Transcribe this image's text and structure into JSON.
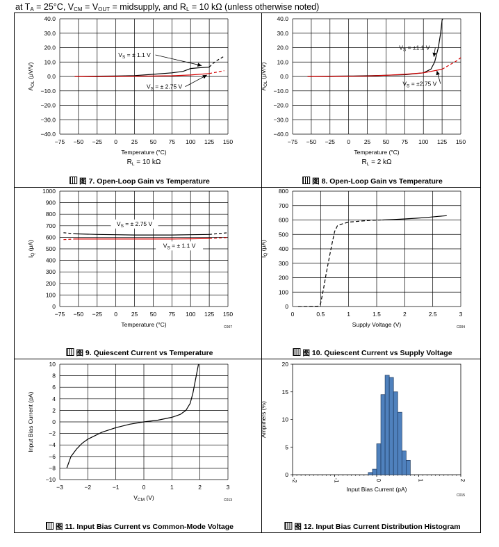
{
  "header": {
    "parts": [
      "at T",
      "A",
      " = 25°C, V",
      "CM",
      " = V",
      "OUT",
      " = midsupply, and R",
      "L",
      " = 10 kΩ (unless otherwise noted)"
    ]
  },
  "colors": {
    "black": "#000000",
    "red": "#d40000",
    "bar": "#4f81bd",
    "grid": "#000000"
  },
  "chart_data": [
    {
      "id": "fig7",
      "type": "line",
      "caption": "图 7. Open-Loop Gain vs Temperature",
      "xlabel": "Temperature (°C)",
      "xlabel_extra": "R_L = 10 kΩ",
      "ylabel": "A_OL (μV/V)",
      "xlim": [
        -75,
        150
      ],
      "ylim": [
        -40,
        40
      ],
      "xticks": [
        -75,
        -50,
        -25,
        0,
        25,
        50,
        75,
        100,
        125,
        150
      ],
      "yticks": [
        -40,
        -30,
        -20,
        -10,
        0,
        10,
        20,
        30,
        40
      ],
      "ytick_labels": [
        "−40.0",
        "−30.0",
        "−20.0",
        "−10.0",
        "0.0",
        "10.0",
        "20.0",
        "30.0",
        "40.0"
      ],
      "xtick_labels": [
        "−75",
        "−50",
        "−25",
        "0",
        "25",
        "50",
        "75",
        "100",
        "125",
        "150"
      ],
      "series": [
        {
          "name": "V_S = ± 1.1 V",
          "color": "#000000",
          "dash": "",
          "x": [
            -55,
            -25,
            0,
            25,
            50,
            75,
            90,
            100,
            110,
            125
          ],
          "y": [
            0,
            0.2,
            0.3,
            0.6,
            1.5,
            2.5,
            3.5,
            5.5,
            6,
            6.5
          ]
        },
        {
          "name": "V_S = ± 1.1 V ext",
          "color": "#000000",
          "dash": "4,3",
          "x": [
            125,
            130,
            135,
            140,
            145
          ],
          "y": [
            6.5,
            9,
            11,
            12.5,
            14
          ]
        },
        {
          "name": "V_S = ± 2.75 V",
          "color": "#d40000",
          "dash": "",
          "x": [
            -55,
            -25,
            0,
            25,
            50,
            75,
            100,
            125
          ],
          "y": [
            0,
            -0.1,
            0,
            0.2,
            0.3,
            0.5,
            1,
            2
          ]
        },
        {
          "name": "V_S = ± 2.75 V ext",
          "color": "#d40000",
          "dash": "4,3",
          "x": [
            125,
            135,
            145
          ],
          "y": [
            2,
            3,
            4
          ]
        }
      ],
      "annotations": [
        {
          "text": "V_S = ± 1.1 V",
          "tx": 25,
          "ty": 13.5,
          "ax": 115,
          "ay": 7.5
        },
        {
          "text": "V_S = ± 2.75 V",
          "tx": 65,
          "ty": -8.5,
          "ax": 122,
          "ay": 1
        }
      ]
    },
    {
      "id": "fig8",
      "type": "line",
      "caption": "图 8. Open-Loop Gain vs Temperature",
      "xlabel": "Temperature (°C)",
      "xlabel_extra": "R_L = 2 kΩ",
      "ylabel": "A_OL (μV/V)",
      "xlim": [
        -75,
        150
      ],
      "ylim": [
        -40,
        40
      ],
      "xticks": [
        -75,
        -50,
        -25,
        0,
        25,
        50,
        75,
        100,
        125,
        150
      ],
      "yticks": [
        -40,
        -30,
        -20,
        -10,
        0,
        10,
        20,
        30,
        40
      ],
      "ytick_labels": [
        "−40.0",
        "−30.0",
        "−20.0",
        "−10.0",
        "0.0",
        "10.0",
        "20.0",
        "30.0",
        "40.0"
      ],
      "xtick_labels": [
        "−75",
        "−50",
        "−25",
        "0",
        "25",
        "50",
        "75",
        "100",
        "125",
        "150"
      ],
      "series": [
        {
          "name": "V_S = ±1.1 V",
          "color": "#000000",
          "dash": "",
          "x": [
            -55,
            -25,
            0,
            25,
            50,
            75,
            100,
            110,
            115,
            120,
            123,
            125
          ],
          "y": [
            0,
            0.2,
            0.3,
            0.5,
            0.8,
            1.2,
            2.5,
            5,
            10,
            20,
            30,
            39
          ]
        },
        {
          "name": "V_S = ±1.1 V ext",
          "color": "#000000",
          "dash": "4,3",
          "x": [
            125,
            126
          ],
          "y": [
            39,
            40
          ]
        },
        {
          "name": "V_S = ±2.75 V",
          "color": "#d40000",
          "dash": "",
          "x": [
            -55,
            -25,
            0,
            25,
            50,
            75,
            100,
            125
          ],
          "y": [
            0,
            0,
            0.2,
            0.3,
            0.8,
            1.5,
            2.5,
            5
          ]
        },
        {
          "name": "V_S = ±2.75 V ext",
          "color": "#d40000",
          "dash": "4,3",
          "x": [
            125,
            135,
            145,
            150
          ],
          "y": [
            5,
            8,
            11,
            13
          ]
        }
      ],
      "annotations": [
        {
          "text": "V_S = ±1.1 V",
          "tx": 88,
          "ty": 18.5,
          "ax": 114,
          "ay": 13.5
        },
        {
          "text": "V_S = ±2.75 V",
          "tx": 95,
          "ty": -6.5,
          "ax": 118,
          "ay": 4
        }
      ]
    },
    {
      "id": "fig9",
      "type": "line",
      "caption": "图 9. Quiescent Current vs Temperature",
      "xlabel": "Temperature (°C)",
      "ylabel": "I_Q (μA)",
      "code": "C007",
      "xlim": [
        -75,
        150
      ],
      "ylim": [
        0,
        1000
      ],
      "xticks": [
        -75,
        -50,
        -25,
        0,
        25,
        50,
        75,
        100,
        125,
        150
      ],
      "yticks": [
        0,
        100,
        200,
        300,
        400,
        500,
        600,
        700,
        800,
        900,
        1000
      ],
      "ytick_labels": [
        "0",
        "100",
        "200",
        "300",
        "400",
        "500",
        "600",
        "700",
        "800",
        "900",
        "1000"
      ],
      "xtick_labels": [
        "−75",
        "−50",
        "−25",
        "0",
        "25",
        "50",
        "75",
        "100",
        "125",
        "150"
      ],
      "series": [
        {
          "name": "V_S = ± 2.75 V",
          "color": "#000000",
          "dash": "",
          "x": [
            -55,
            -25,
            0,
            25,
            50,
            75,
            100,
            125
          ],
          "y": [
            630,
            625,
            622,
            620,
            620,
            620,
            622,
            625
          ]
        },
        {
          "name": "V_S = ± 2.75 V ext",
          "color": "#000000",
          "dash": "4,3",
          "x": [
            -70,
            -55
          ],
          "y": [
            640,
            630
          ]
        },
        {
          "name": "V_S = ± 2.75 V ext2",
          "color": "#000000",
          "dash": "4,3",
          "x": [
            125,
            150
          ],
          "y": [
            625,
            640
          ]
        },
        {
          "name": "V_S = ± 1.1 V",
          "color": "#d40000",
          "dash": "",
          "x": [
            -55,
            -25,
            0,
            25,
            50,
            75,
            100,
            125
          ],
          "y": [
            585,
            585,
            585,
            585,
            585,
            585,
            587,
            590
          ]
        },
        {
          "name": "V_S = ± 1.1 V ext",
          "color": "#d40000",
          "dash": "4,3",
          "x": [
            -70,
            -55
          ],
          "y": [
            580,
            585
          ]
        },
        {
          "name": "V_S = ± 1.1 V ext2",
          "color": "#d40000",
          "dash": "4,3",
          "x": [
            125,
            150
          ],
          "y": [
            590,
            598
          ]
        }
      ],
      "annotations": [
        {
          "text": "V_S = ± 2.75 V",
          "tx": 25,
          "ty": 700,
          "ax": null,
          "ay": null
        },
        {
          "text": "V_S = ± 1.1 V",
          "tx": 85,
          "ty": 510,
          "ax": null,
          "ay": null
        }
      ]
    },
    {
      "id": "fig10",
      "type": "line",
      "caption": "图 10. Quiescent Current vs Supply Voltage",
      "xlabel": "Supply Voltage (V)",
      "ylabel": "I_Q (μA)",
      "code": "C004",
      "xlim": [
        0,
        3
      ],
      "ylim": [
        0,
        800
      ],
      "xticks": [
        0,
        0.5,
        1,
        1.5,
        2,
        2.5,
        3
      ],
      "yticks": [
        0,
        100,
        200,
        300,
        400,
        500,
        600,
        700,
        800
      ],
      "ytick_labels": [
        "0",
        "100",
        "200",
        "300",
        "400",
        "500",
        "600",
        "700",
        "800"
      ],
      "xtick_labels": [
        "0",
        "0.5",
        "1",
        "1.5",
        "2",
        "2.5",
        "3"
      ],
      "series": [
        {
          "name": "dashed",
          "color": "#000000",
          "dash": "5,3",
          "x": [
            0.1,
            0.45,
            0.5,
            0.55,
            0.6,
            0.65,
            0.7,
            0.75,
            0.8,
            0.9,
            1.0,
            1.2,
            1.4,
            1.6
          ],
          "y": [
            0,
            2,
            20,
            120,
            230,
            330,
            430,
            520,
            560,
            575,
            585,
            592,
            598,
            600
          ]
        },
        {
          "name": "solid",
          "color": "#000000",
          "dash": "",
          "x": [
            1.6,
            1.8,
            2.0,
            2.2,
            2.4,
            2.6,
            2.75
          ],
          "y": [
            600,
            603,
            607,
            612,
            618,
            625,
            630
          ]
        }
      ],
      "annotations": []
    },
    {
      "id": "fig11",
      "type": "line",
      "caption": "图 11. Input Bias Current vs Common-Mode Voltage",
      "xlabel": "V_CM (V)",
      "ylabel": "Input Bias Current (pA)",
      "code": "C013",
      "xlim": [
        -3,
        3
      ],
      "ylim": [
        -10,
        10
      ],
      "xticks": [
        -3,
        -2,
        -1,
        0,
        1,
        2,
        3
      ],
      "yticks": [
        -10,
        -8,
        -6,
        -4,
        -2,
        0,
        2,
        4,
        6,
        8,
        10
      ],
      "ytick_labels": [
        "−10",
        "−8",
        "−6",
        "−4",
        "−2",
        "0",
        "2",
        "4",
        "6",
        "8",
        "10"
      ],
      "xtick_labels": [
        "−3",
        "−2",
        "−1",
        "0",
        "1",
        "2",
        "3"
      ],
      "series": [
        {
          "name": "curve",
          "color": "#000000",
          "dash": "",
          "x": [
            -2.75,
            -2.6,
            -2.4,
            -2.2,
            -2.0,
            -1.5,
            -1.0,
            -0.5,
            0,
            0.5,
            1.0,
            1.3,
            1.5,
            1.65,
            1.75,
            1.85,
            1.95
          ],
          "y": [
            -8,
            -6,
            -4.7,
            -3.7,
            -3.0,
            -1.8,
            -1.0,
            -0.4,
            0,
            0.3,
            0.8,
            1.3,
            2.0,
            3.2,
            5,
            7.5,
            10
          ]
        }
      ],
      "annotations": []
    },
    {
      "id": "fig12",
      "type": "bar",
      "caption": "图 12. Input Bias Current Distribution Histogram",
      "xlabel": "Input Bias Current (pA)",
      "ylabel": "Amplifiers (%)",
      "code": "C015",
      "xlim": [
        -2,
        2
      ],
      "ylim": [
        0,
        20
      ],
      "xticks": [
        -2,
        -1,
        0,
        1,
        2
      ],
      "xtick_labels": [
        "-2",
        "-1",
        "0",
        "1",
        "2"
      ],
      "yticks": [
        0,
        5,
        10,
        15,
        20
      ],
      "ytick_labels": [
        "0",
        "5",
        "10",
        "15",
        "20"
      ],
      "bin_width": 0.1,
      "bin_starts": [
        -0.2,
        -0.1,
        0.0,
        0.1,
        0.2,
        0.3,
        0.4,
        0.5,
        0.6,
        0.7
      ],
      "values": [
        0.4,
        1.0,
        5.6,
        14.5,
        18,
        17.6,
        15,
        11.3,
        4.3,
        2.6
      ]
    }
  ]
}
